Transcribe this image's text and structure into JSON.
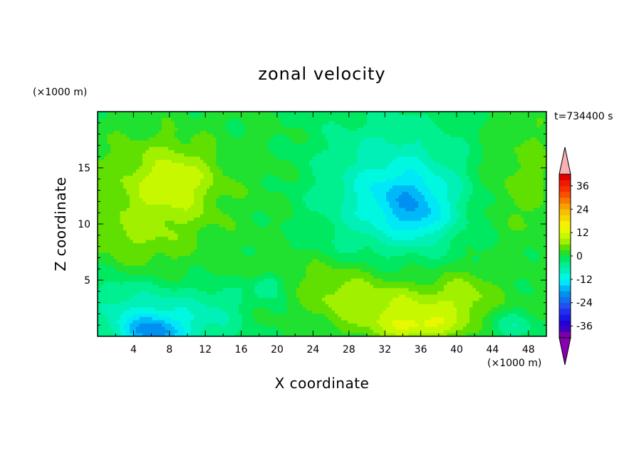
{
  "chart_data": {
    "type": "heatmap",
    "title": "zonal velocity",
    "xlabel": "X coordinate",
    "ylabel": "Z coordinate",
    "x_unit": "(×1000 m)",
    "y_unit": "(×1000 m)",
    "timestamp": "t=734400 s",
    "xlim": [
      0,
      50
    ],
    "ylim": [
      0,
      20
    ],
    "x_ticks": [
      4,
      8,
      12,
      16,
      20,
      24,
      28,
      32,
      36,
      40,
      44,
      48
    ],
    "y_ticks": [
      5,
      10,
      15
    ],
    "colorbar": {
      "levels": [
        -42,
        -39,
        -36,
        -33,
        -30,
        -27,
        -24,
        -21,
        -18,
        -15,
        -12,
        -9,
        -6,
        -3,
        0,
        3,
        6,
        9,
        12,
        15,
        18,
        21,
        24,
        27,
        30,
        33,
        36,
        39,
        42
      ],
      "colors": [
        "#7c00a8",
        "#4000c0",
        "#2200d8",
        "#1818e8",
        "#2030f0",
        "#2050f0",
        "#1070f0",
        "#0090f0",
        "#00b8f8",
        "#00e8f8",
        "#00f8e0",
        "#00f0b8",
        "#00f090",
        "#00e860",
        "#20e030",
        "#60e000",
        "#a0f000",
        "#c8f800",
        "#e8f800",
        "#f8f000",
        "#f8d800",
        "#f8c000",
        "#f8a000",
        "#f87800",
        "#f85000",
        "#f83000",
        "#f01800",
        "#e00000"
      ],
      "over_color": "#f8b0b0",
      "under_color": "#8800b0",
      "tick_labels": [
        "36",
        "24",
        "12",
        "0",
        "-12",
        "-24",
        "-36"
      ],
      "tick_values": [
        36,
        24,
        12,
        0,
        -12,
        -24,
        -36
      ]
    },
    "field_features": [
      {
        "region": "upper-left jet",
        "x": 9,
        "z": 14,
        "u": 13
      },
      {
        "region": "upper-left broad",
        "x": 8,
        "z": 12,
        "u": 8
      },
      {
        "region": "mid-center band",
        "x": 18,
        "z": 12,
        "u": 1
      },
      {
        "region": "central negative",
        "x": 34,
        "z": 12,
        "u": -16
      },
      {
        "region": "central negative broad",
        "x": 34,
        "z": 13,
        "u": -9
      },
      {
        "region": "right positive band",
        "x": 45,
        "z": 13,
        "u": 2
      },
      {
        "region": "lower-left negative",
        "x": 7,
        "z": 1,
        "u": -18
      },
      {
        "region": "lower-right positive",
        "x": 36,
        "z": 1,
        "u": 16
      },
      {
        "region": "lower-right broad",
        "x": 34,
        "z": 3,
        "u": 9
      },
      {
        "region": "low-level band",
        "x": 26,
        "z": 5,
        "u": 2
      }
    ]
  }
}
